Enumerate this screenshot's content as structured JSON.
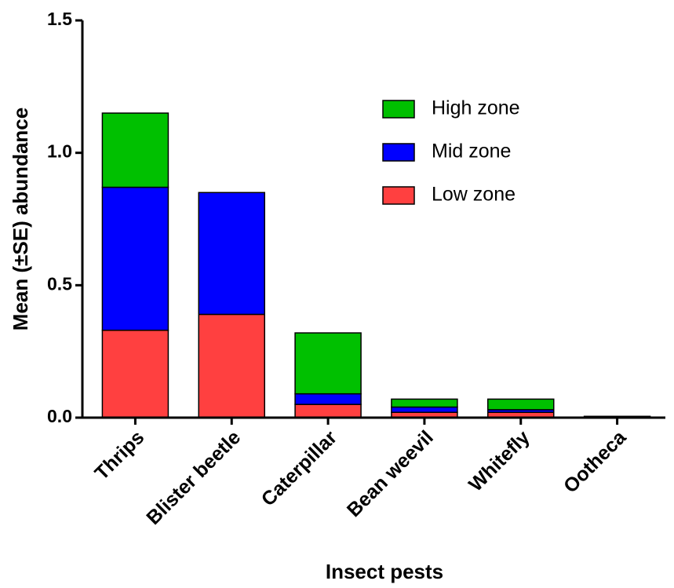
{
  "chart_data": {
    "type": "stacked_bar",
    "x_label": "Insect pests",
    "y_label": "Mean (±SE) abundance",
    "categories": [
      "Thrips",
      "Blister beetle",
      "Caterpillar",
      "Bean weevil",
      "Whitefly",
      "Ootheca"
    ],
    "series": [
      {
        "name": "Low zone",
        "color": "#ff4040",
        "values": [
          0.33,
          0.39,
          0.05,
          0.02,
          0.02,
          0
        ]
      },
      {
        "name": "Mid zone",
        "color": "#0000ff",
        "values": [
          0.54,
          0.46,
          0.04,
          0.02,
          0.01,
          0
        ]
      },
      {
        "name": "High zone",
        "color": "#00c000",
        "values": [
          0.28,
          0,
          0.23,
          0.03,
          0.04,
          0.005
        ]
      }
    ],
    "ylim": [
      0,
      1.5
    ],
    "yticks": [
      {
        "value": 0,
        "label": "0.0"
      },
      0.5,
      {
        "value": 1,
        "label": "1.0"
      },
      1.5
    ],
    "legend": "upper right"
  }
}
